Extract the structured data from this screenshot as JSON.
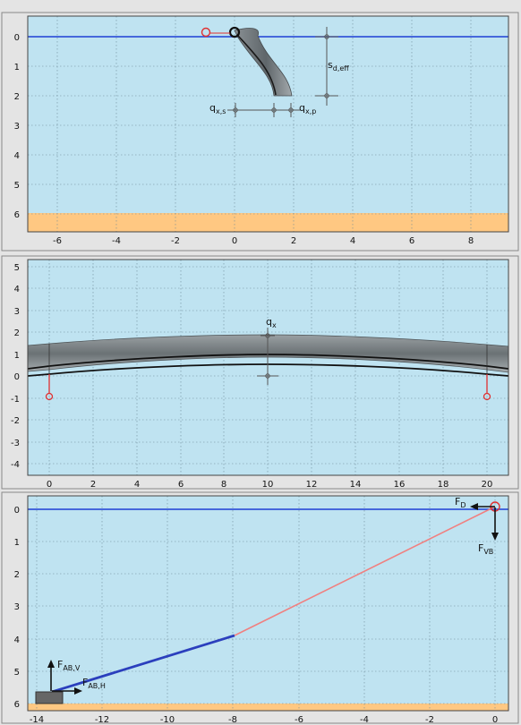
{
  "colors": {
    "window_bg": "#e4e4e4",
    "water": "#bfe3f1",
    "seabed": "#ffc882",
    "water_surface": "#1f3fd6",
    "grid": "#6e8a98",
    "pipe": "#7d8488",
    "hose_dark": "#1a1a1a",
    "anchor_marker": "#e03030",
    "chain_lifted": "#f08080",
    "chain_on_seabed": "#2b3fbd",
    "anchor_block": "#666666"
  },
  "panels": [
    {
      "id": "side-view",
      "x_ticks": [
        "-6",
        "-4",
        "-2",
        "0",
        "2",
        "4",
        "6",
        "8"
      ],
      "y_ticks": [
        "0",
        "1",
        "2",
        "3",
        "4",
        "5",
        "6"
      ],
      "labels": {
        "s_deff": {
          "main": "s",
          "sub": "d,eff"
        },
        "q_xs": {
          "main": "q",
          "sub": "x,s"
        },
        "q_xp": {
          "main": "q",
          "sub": "x,p"
        }
      }
    },
    {
      "id": "plan-view",
      "x_ticks": [
        "0",
        "2",
        "4",
        "6",
        "8",
        "10",
        "12",
        "14",
        "16",
        "18",
        "20"
      ],
      "y_ticks": [
        "5",
        "4",
        "3",
        "2",
        "1",
        "0",
        "-1",
        "-2",
        "-3",
        "-4"
      ],
      "labels": {
        "q_x": {
          "main": "q",
          "sub": "x"
        }
      }
    },
    {
      "id": "mooring-view",
      "x_ticks": [
        "-14",
        "-12",
        "-10",
        "-8",
        "-6",
        "-4",
        "-2",
        "0"
      ],
      "y_ticks": [
        "0",
        "1",
        "2",
        "3",
        "4",
        "5",
        "6"
      ],
      "labels": {
        "F_D": {
          "main": "F",
          "sub": "D"
        },
        "F_VB": {
          "main": "F",
          "sub": "VB"
        },
        "F_ABV": {
          "main": "F",
          "sub": "AB,V"
        },
        "F_ABH": {
          "main": "F",
          "sub": "AB,H"
        }
      }
    }
  ]
}
